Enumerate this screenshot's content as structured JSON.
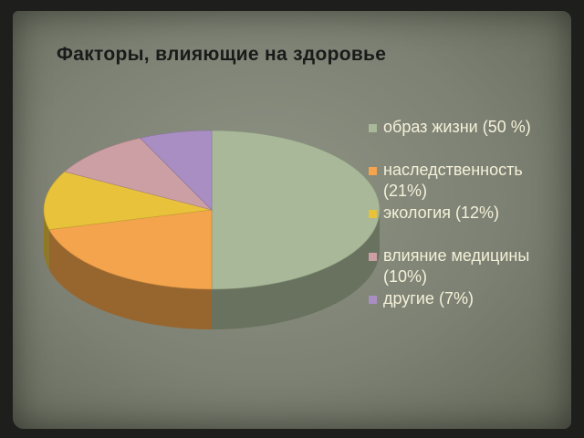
{
  "title": "Факторы, влияющие на здоровье",
  "chart_data": {
    "type": "pie",
    "title": "Факторы, влияющие на здоровье",
    "style": "3d",
    "legend_position": "right",
    "categories": [
      "образ жизни",
      "наследственность",
      "экология",
      "влияние медицины",
      "другие"
    ],
    "values": [
      50,
      21,
      12,
      10,
      7
    ],
    "legend_labels": [
      "образ жизни (50 %)",
      "наследственность (21%)",
      "экология (12%)",
      "влияние медицины (10%)",
      "другие (7%)"
    ],
    "colors": [
      "#a8b898",
      "#f4a44c",
      "#e8c23a",
      "#cc9fa5",
      "#a98ec4"
    ]
  }
}
